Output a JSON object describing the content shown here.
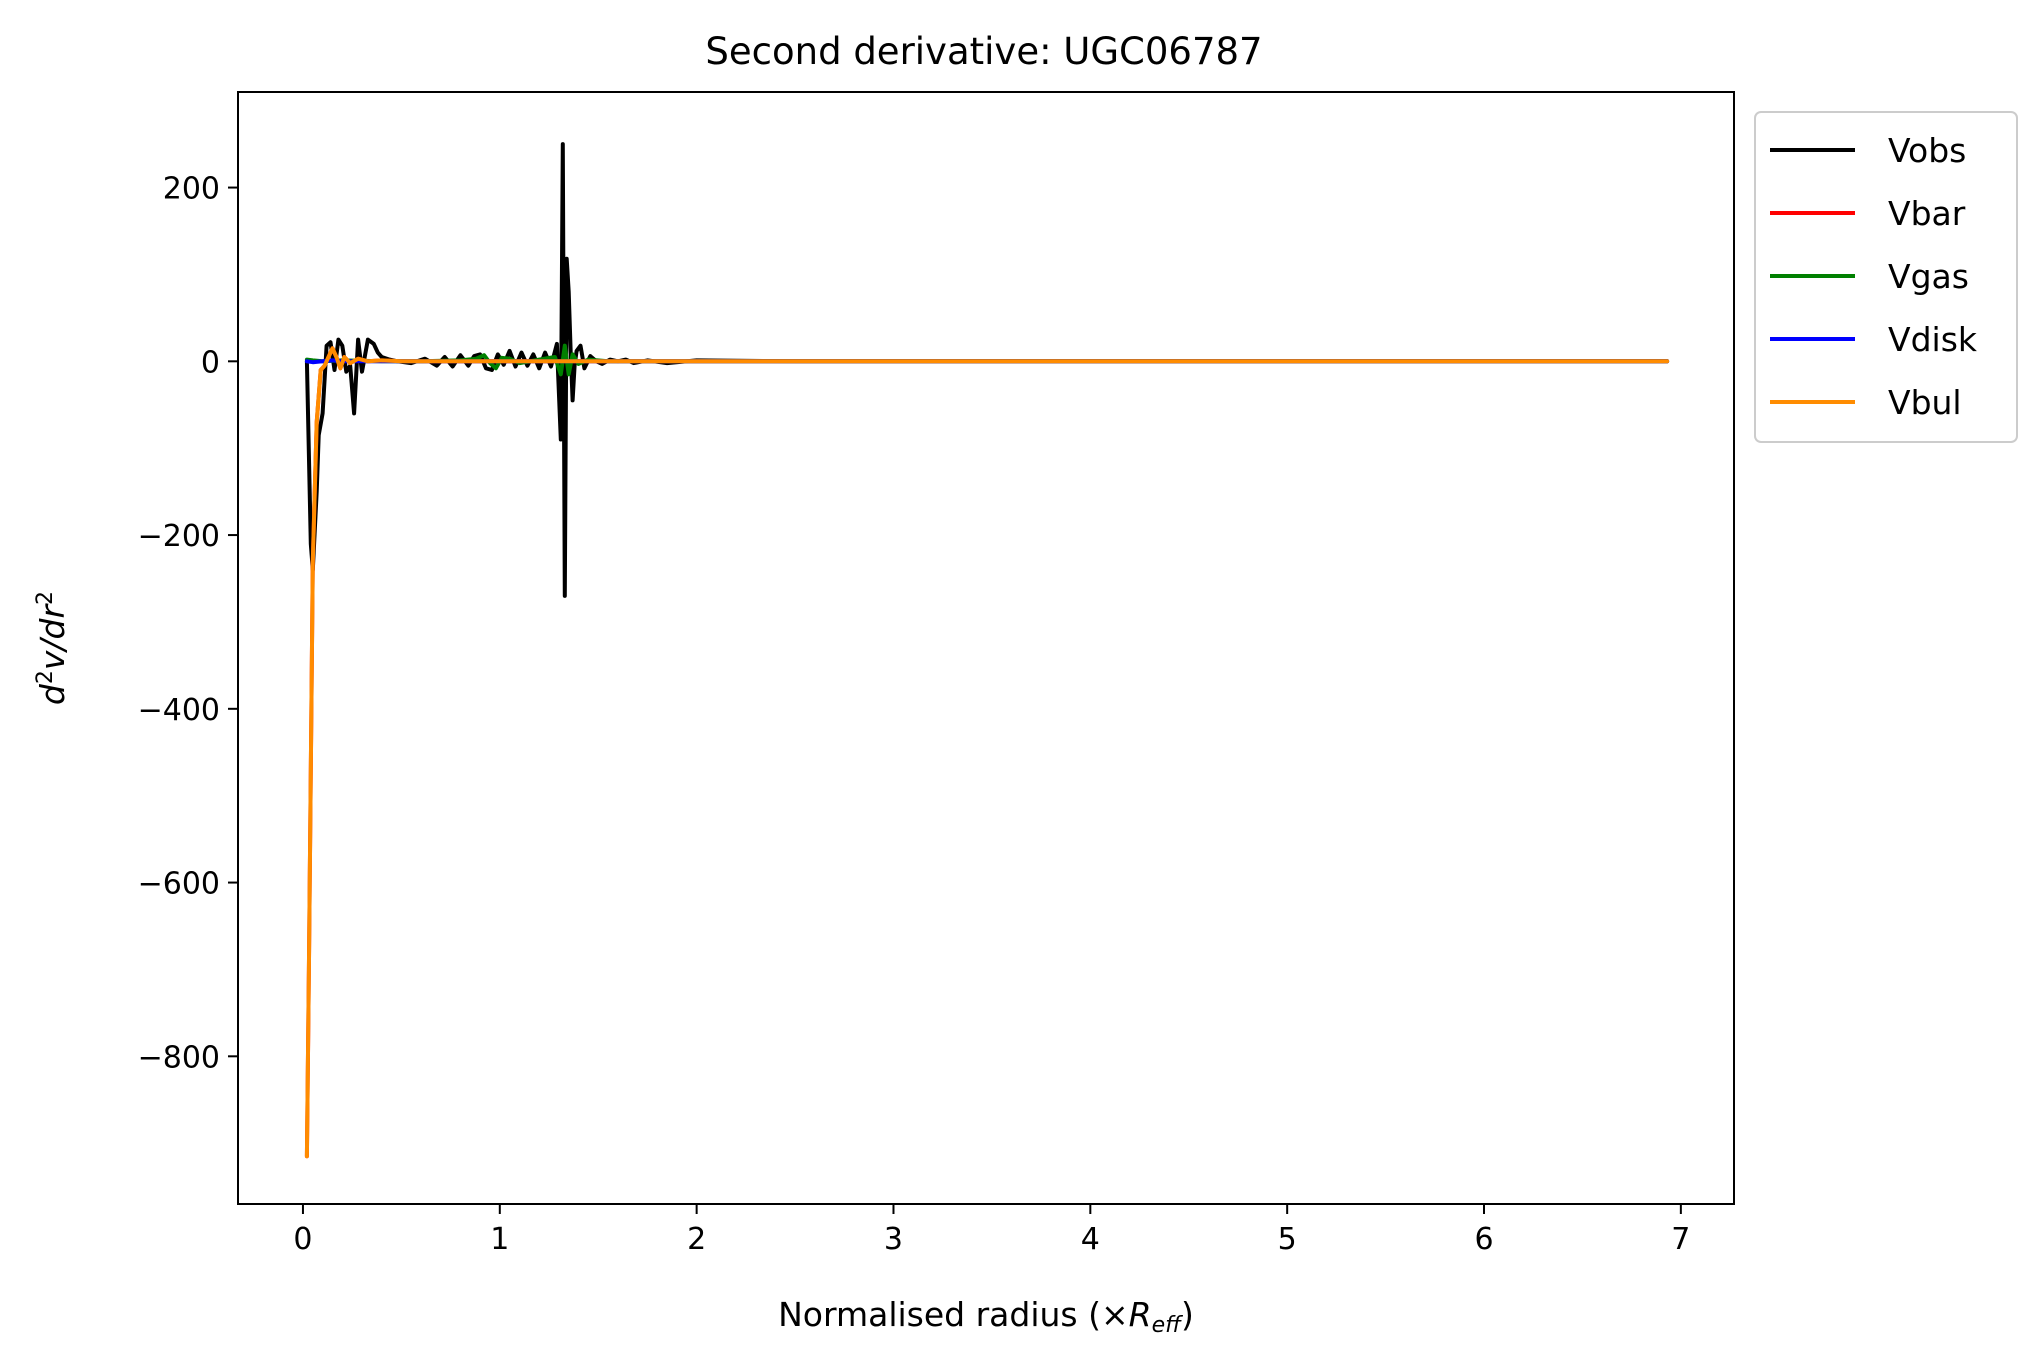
{
  "chart_data": {
    "type": "line",
    "title": "Second derivative: UGC06787",
    "xlabel": {
      "main": "Normalised radius (×",
      "sym": "R",
      "sub": "eff",
      "close": ")"
    },
    "ylabel": {
      "d": "d",
      "sup1": "2",
      "v": "v/dr",
      "sup2": "2"
    },
    "xlim": [
      -0.33,
      7.27
    ],
    "ylim": [
      -970,
      310
    ],
    "xticks": [
      0,
      1,
      2,
      3,
      4,
      5,
      6,
      7
    ],
    "xtick_labels": [
      "0",
      "1",
      "2",
      "3",
      "4",
      "5",
      "6",
      "7"
    ],
    "yticks": [
      200,
      0,
      -200,
      -400,
      -600,
      -800
    ],
    "ytick_labels": [
      "200",
      "0",
      "−200",
      "−400",
      "−600",
      "−800"
    ],
    "legend_position": "outside-top-right",
    "series": [
      {
        "name": "Vobs",
        "color": "#000000",
        "x": [
          0.02,
          0.04,
          0.05,
          0.07,
          0.08,
          0.1,
          0.12,
          0.14,
          0.16,
          0.18,
          0.2,
          0.22,
          0.24,
          0.26,
          0.28,
          0.3,
          0.33,
          0.36,
          0.38,
          0.4,
          0.44,
          0.48,
          0.55,
          0.62,
          0.68,
          0.72,
          0.76,
          0.8,
          0.84,
          0.87,
          0.9,
          0.93,
          0.96,
          0.99,
          1.02,
          1.05,
          1.08,
          1.11,
          1.14,
          1.17,
          1.2,
          1.23,
          1.26,
          1.29,
          1.31,
          1.32,
          1.33,
          1.34,
          1.35,
          1.36,
          1.37,
          1.38,
          1.39,
          1.41,
          1.43,
          1.46,
          1.49,
          1.52,
          1.56,
          1.6,
          1.64,
          1.68,
          1.75,
          1.85,
          2.0,
          2.5,
          3.0,
          4.0,
          5.0,
          6.0,
          6.93
        ],
        "y": [
          0,
          -210,
          -240,
          -150,
          -85,
          -60,
          18,
          22,
          -10,
          25,
          18,
          -12,
          -5,
          -60,
          25,
          -12,
          25,
          20,
          10,
          5,
          2,
          0,
          -2,
          3,
          -5,
          5,
          -6,
          7,
          -5,
          6,
          8,
          -8,
          -10,
          8,
          -4,
          12,
          -6,
          10,
          -5,
          8,
          -8,
          10,
          -6,
          20,
          -90,
          250,
          -270,
          118,
          80,
          10,
          -45,
          -5,
          12,
          18,
          -8,
          6,
          0,
          -3,
          2,
          0,
          2,
          -2,
          1,
          -2,
          1,
          0,
          0,
          0,
          0,
          0,
          0
        ]
      },
      {
        "name": "Vbar",
        "color": "#ff0000",
        "x": [
          0.02,
          0.03,
          0.05,
          0.07,
          0.09,
          0.11,
          0.13,
          0.15,
          0.17,
          0.19,
          0.21,
          0.24,
          0.28,
          0.33,
          0.4,
          0.5,
          0.7,
          0.9,
          1.0,
          1.2,
          1.5,
          2.0,
          3.0,
          4.0,
          5.0,
          6.0,
          6.93
        ],
        "y": [
          -915,
          -700,
          -230,
          -70,
          -10,
          -5,
          5,
          15,
          5,
          -8,
          5,
          -2,
          3,
          0,
          1,
          0,
          0,
          0,
          0,
          0,
          0,
          0,
          0,
          0,
          0,
          0,
          0
        ]
      },
      {
        "name": "Vgas",
        "color": "#008000",
        "x": [
          0.02,
          0.05,
          0.1,
          0.2,
          0.4,
          0.6,
          0.8,
          0.88,
          0.92,
          0.95,
          0.98,
          1.01,
          1.05,
          1.1,
          1.2,
          1.28,
          1.31,
          1.33,
          1.35,
          1.37,
          1.4,
          1.45,
          1.55,
          1.7,
          2.0,
          3.0,
          4.0,
          5.0,
          6.0,
          6.93
        ],
        "y": [
          2,
          1,
          0,
          1,
          0,
          0,
          1,
          3,
          7,
          -2,
          -8,
          4,
          3,
          -2,
          2,
          5,
          -15,
          18,
          -15,
          8,
          -3,
          2,
          0,
          0,
          0,
          0,
          0,
          0,
          0,
          0
        ]
      },
      {
        "name": "Vdisk",
        "color": "#0000ff",
        "x": [
          0.02,
          0.05,
          0.1,
          0.15,
          0.2,
          0.3,
          0.5,
          1.0,
          2.0,
          3.0,
          4.0,
          5.0,
          6.0,
          6.93
        ],
        "y": [
          0,
          -1,
          0,
          1,
          0,
          0,
          0,
          0,
          0,
          0,
          0,
          0,
          0,
          0
        ]
      },
      {
        "name": "Vbul",
        "color": "#ff8c00",
        "x": [
          0.02,
          0.03,
          0.05,
          0.07,
          0.09,
          0.11,
          0.13,
          0.15,
          0.17,
          0.19,
          0.21,
          0.24,
          0.28,
          0.33,
          0.4,
          0.5,
          0.7,
          0.9,
          1.0,
          1.2,
          1.5,
          2.0,
          3.0,
          4.0,
          5.0,
          6.0,
          6.93
        ],
        "y": [
          -915,
          -700,
          -230,
          -70,
          -10,
          -5,
          5,
          15,
          5,
          -8,
          5,
          -2,
          3,
          0,
          1,
          0,
          0,
          0,
          0,
          0,
          0,
          0,
          0,
          0,
          0,
          0,
          0
        ]
      }
    ]
  }
}
